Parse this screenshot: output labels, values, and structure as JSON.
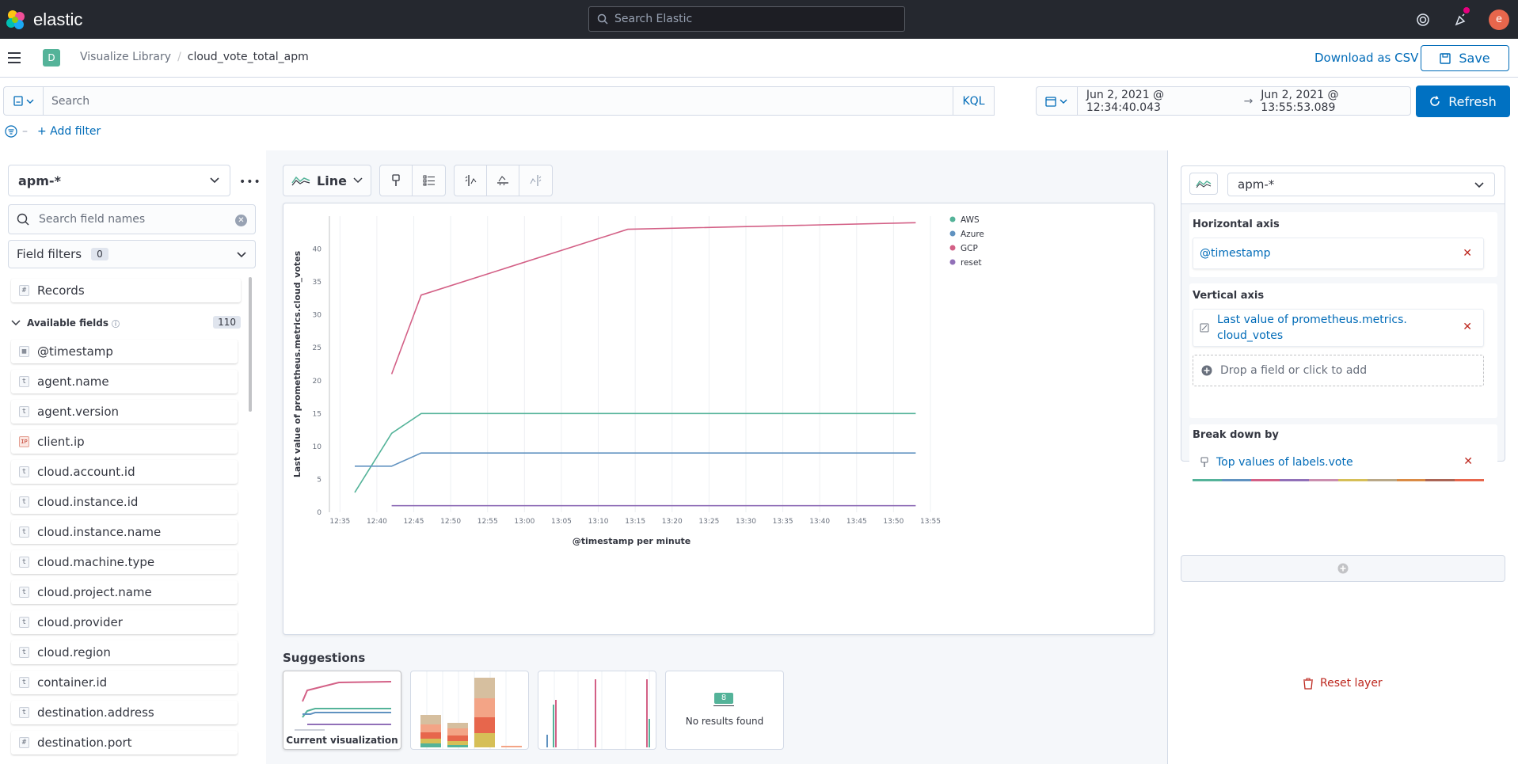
{
  "app": {
    "brand": "elastic",
    "search_placeholder": "Search Elastic",
    "user_initial": "e"
  },
  "header": {
    "space_initial": "D",
    "breadcrumbs": [
      "Visualize Library",
      "cloud_vote_total_apm"
    ],
    "download_csv": "Download as CSV",
    "save_label": "Save"
  },
  "query": {
    "placeholder": "Search",
    "language": "KQL",
    "time_start": "Jun 2, 2021 @ 12:34:40.043",
    "time_end": "Jun 2, 2021 @ 13:55:53.089",
    "refresh_label": "Refresh",
    "add_filter": "+ Add filter"
  },
  "sidebar": {
    "index_pattern": "apm-*",
    "search_placeholder": "Search field names",
    "field_filters_label": "Field filters",
    "field_filters_count": "0",
    "records_label": "Records",
    "available_fields_label": "Available fields",
    "available_fields_count": "110",
    "fields": [
      {
        "name": "@timestamp",
        "type": "date"
      },
      {
        "name": "agent.name",
        "type": "t"
      },
      {
        "name": "agent.version",
        "type": "t"
      },
      {
        "name": "client.ip",
        "type": "ip"
      },
      {
        "name": "cloud.account.id",
        "type": "t"
      },
      {
        "name": "cloud.instance.id",
        "type": "t"
      },
      {
        "name": "cloud.instance.name",
        "type": "t"
      },
      {
        "name": "cloud.machine.type",
        "type": "t"
      },
      {
        "name": "cloud.project.name",
        "type": "t"
      },
      {
        "name": "cloud.provider",
        "type": "t"
      },
      {
        "name": "cloud.region",
        "type": "t"
      },
      {
        "name": "container.id",
        "type": "t"
      },
      {
        "name": "destination.address",
        "type": "t"
      },
      {
        "name": "destination.port",
        "type": "#"
      }
    ]
  },
  "toolbar": {
    "chart_type": "Line"
  },
  "chart_data": {
    "type": "line",
    "xlabel": "@timestamp per minute",
    "ylabel": "Last value of prometheus.metrics.cloud_votes",
    "x_ticks": [
      "12:35",
      "12:40",
      "12:45",
      "12:50",
      "12:55",
      "13:00",
      "13:05",
      "13:10",
      "13:15",
      "13:20",
      "13:25",
      "13:30",
      "13:35",
      "13:40",
      "13:45",
      "13:50",
      "13:55"
    ],
    "y_ticks": [
      0,
      5,
      10,
      15,
      20,
      25,
      30,
      35,
      40
    ],
    "ylim": [
      0,
      45
    ],
    "legend_position": "top-right",
    "series": [
      {
        "name": "AWS",
        "color": "#54b399",
        "x": [
          "12:37",
          "12:42",
          "12:46",
          "12:53",
          "13:00",
          "13:10",
          "13:20",
          "13:30",
          "13:40",
          "13:50",
          "13:53"
        ],
        "values": [
          3,
          12,
          15,
          15,
          15,
          15,
          15,
          15,
          15,
          15,
          15
        ]
      },
      {
        "name": "Azure",
        "color": "#6092c0",
        "x": [
          "12:37",
          "12:42",
          "12:46",
          "12:53",
          "13:00",
          "13:10",
          "13:20",
          "13:30",
          "13:40",
          "13:50",
          "13:53"
        ],
        "values": [
          7,
          7,
          9,
          9,
          9,
          9,
          9,
          9,
          9,
          9,
          9
        ]
      },
      {
        "name": "GCP",
        "color": "#d36086",
        "x": [
          "12:42",
          "12:46",
          "13:14",
          "13:53"
        ],
        "values": [
          21,
          33,
          43,
          44
        ]
      },
      {
        "name": "reset",
        "color": "#9170b8",
        "x": [
          "12:42",
          "12:46",
          "13:00",
          "13:20",
          "13:40",
          "13:53"
        ],
        "values": [
          1,
          1,
          1,
          1,
          1,
          1
        ]
      }
    ]
  },
  "suggestions": {
    "title": "Suggestions",
    "items": [
      "Current visualization",
      "",
      "",
      "No results found"
    ],
    "no_results_count": "8"
  },
  "layer": {
    "index_pattern": "apm-*",
    "horizontal_axis_label": "Horizontal axis",
    "horizontal_field": "@timestamp",
    "vertical_axis_label": "Vertical axis",
    "vertical_field_line1": "Last value of prometheus.metrics.",
    "vertical_field_line2": "cloud_votes",
    "drop_placeholder": "Drop a field or click to add",
    "breakdown_label": "Break down by",
    "breakdown_field": "Top values of labels.vote",
    "reset_label": "Reset layer"
  }
}
